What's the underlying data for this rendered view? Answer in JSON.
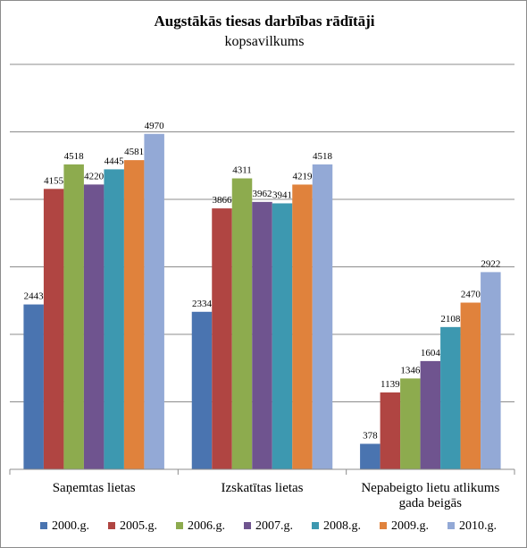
{
  "chart_data": {
    "type": "bar",
    "title": "Augstākās tiesas darbības rādītāji",
    "subtitle": "kopsavilkums",
    "categories": [
      "Saņemtas lietas",
      "Izskatītas lietas",
      "Nepabeigto lietu atlikums gada beigās"
    ],
    "series": [
      {
        "name": "2000.g.",
        "color": "#4a74b0",
        "values": [
          2443,
          2334,
          378
        ]
      },
      {
        "name": "2005.g.",
        "color": "#b04542",
        "values": [
          4155,
          3866,
          1139
        ]
      },
      {
        "name": "2006.g.",
        "color": "#8dab4e",
        "values": [
          4518,
          4311,
          1346
        ]
      },
      {
        "name": "2007.g.",
        "color": "#6f548f",
        "values": [
          4220,
          3962,
          1604
        ]
      },
      {
        "name": "2008.g.",
        "color": "#3d98b0",
        "values": [
          4445,
          3941,
          2108
        ]
      },
      {
        "name": "2009.g.",
        "color": "#e0823c",
        "values": [
          4581,
          4219,
          2470
        ]
      },
      {
        "name": "2010.g.",
        "color": "#93a9d6",
        "values": [
          4970,
          4518,
          2922
        ]
      }
    ],
    "ylim": [
      0,
      6000
    ],
    "grid": true,
    "legend": "bottom",
    "xlabel": "",
    "ylabel": ""
  }
}
